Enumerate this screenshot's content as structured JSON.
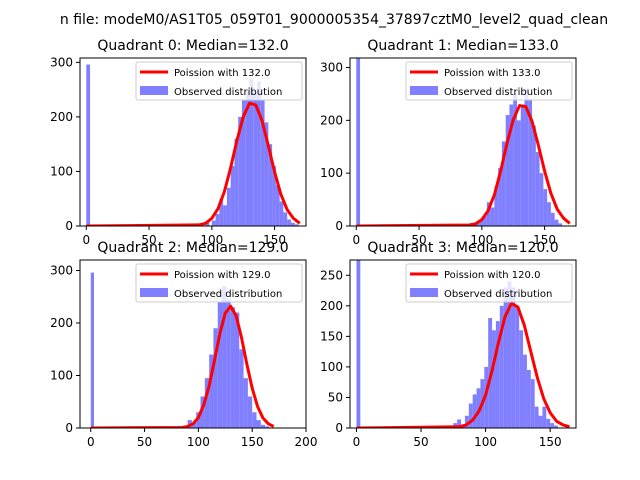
{
  "figure": {
    "suptitle": "n file: modeM0/AS1T05_059T01_9000005354_37897cztM0_level2_quad_clean"
  },
  "colors": {
    "fit_line": "#ff0000",
    "histogram": "#7f7fff",
    "axes": "#000000",
    "legend_border": "#cccccc"
  },
  "chart_data": [
    {
      "type": "bar",
      "title": "Quadrant 0: Median=132.0",
      "xlim": [
        -5,
        175
      ],
      "ylim": [
        0,
        308
      ],
      "xticks": [
        0,
        50,
        100,
        150
      ],
      "yticks": [
        0,
        100,
        200,
        300
      ],
      "legend_position": "top-right",
      "series": [
        {
          "name": "Observed distribution",
          "kind": "histogram",
          "bins": [
            [
              0,
              3,
              296
            ],
            [
              80,
              83,
              3
            ],
            [
              90,
              93,
              5
            ],
            [
              95,
              98,
              8
            ],
            [
              100,
              103,
              10
            ],
            [
              103,
              106,
              22
            ],
            [
              106,
              109,
              50
            ],
            [
              109,
              112,
              38
            ],
            [
              112,
              115,
              70
            ],
            [
              115,
              118,
              110
            ],
            [
              118,
              121,
              160
            ],
            [
              121,
              124,
              200
            ],
            [
              124,
              127,
              230
            ],
            [
              127,
              130,
              245
            ],
            [
              130,
              133,
              270
            ],
            [
              133,
              136,
              245
            ],
            [
              136,
              139,
              265
            ],
            [
              139,
              142,
              230
            ],
            [
              142,
              145,
              190
            ],
            [
              145,
              148,
              150
            ],
            [
              148,
              151,
              110
            ],
            [
              151,
              154,
              75
            ],
            [
              154,
              157,
              45
            ],
            [
              157,
              160,
              25
            ],
            [
              160,
              163,
              12
            ],
            [
              163,
              166,
              6
            ],
            [
              166,
              169,
              3
            ]
          ]
        },
        {
          "name": "Poission with 132.0",
          "kind": "curve",
          "x": [
            0,
            90,
            95,
            100,
            105,
            110,
            115,
            120,
            125,
            130,
            135,
            140,
            145,
            150,
            155,
            160,
            165,
            170
          ],
          "y": [
            0,
            2,
            5,
            14,
            32,
            63,
            107,
            157,
            200,
            225,
            222,
            193,
            147,
            99,
            58,
            30,
            14,
            5
          ]
        }
      ]
    },
    {
      "type": "bar",
      "title": "Quadrant 1: Median=133.0",
      "xlim": [
        -5,
        175
      ],
      "ylim": [
        0,
        318
      ],
      "xticks": [
        0,
        50,
        100,
        150
      ],
      "yticks": [
        0,
        100,
        200,
        300
      ],
      "legend_position": "top-right",
      "series": [
        {
          "name": "Observed distribution",
          "kind": "histogram",
          "bins": [
            [
              0,
              3,
              318
            ],
            [
              85,
              88,
              3
            ],
            [
              90,
              93,
              5
            ],
            [
              95,
              98,
              8
            ],
            [
              98,
              101,
              12
            ],
            [
              101,
              104,
              20
            ],
            [
              104,
              107,
              45
            ],
            [
              107,
              110,
              35
            ],
            [
              110,
              113,
              75
            ],
            [
              113,
              116,
              110
            ],
            [
              116,
              119,
              160
            ],
            [
              119,
              122,
              210
            ],
            [
              122,
              125,
              230
            ],
            [
              125,
              128,
              250
            ],
            [
              128,
              131,
              200
            ],
            [
              131,
              134,
              230
            ],
            [
              134,
              137,
              260
            ],
            [
              137,
              140,
              240
            ],
            [
              140,
              143,
              190
            ],
            [
              143,
              146,
              140
            ],
            [
              146,
              149,
              100
            ],
            [
              149,
              152,
              70
            ],
            [
              152,
              155,
              45
            ],
            [
              155,
              158,
              25
            ],
            [
              158,
              161,
              12
            ],
            [
              161,
              164,
              5
            ]
          ]
        },
        {
          "name": "Poission with 133.0",
          "kind": "curve",
          "x": [
            0,
            90,
            95,
            100,
            105,
            110,
            115,
            120,
            125,
            130,
            135,
            140,
            145,
            150,
            155,
            160,
            165,
            170
          ],
          "y": [
            0,
            2,
            4,
            12,
            29,
            59,
            104,
            156,
            201,
            228,
            226,
            198,
            153,
            104,
            62,
            32,
            15,
            5
          ]
        }
      ]
    },
    {
      "type": "bar",
      "title": "Quadrant 2: Median=129.0",
      "xlim": [
        -10,
        200
      ],
      "ylim": [
        0,
        320
      ],
      "xticks": [
        0,
        50,
        100,
        150,
        200
      ],
      "yticks": [
        0,
        100,
        200,
        300
      ],
      "legend_position": "top-right",
      "series": [
        {
          "name": "Observed distribution",
          "kind": "histogram",
          "bins": [
            [
              0,
              3,
              296
            ],
            [
              85,
              88,
              3
            ],
            [
              90,
              94,
              15
            ],
            [
              94,
              98,
              10
            ],
            [
              98,
              102,
              30
            ],
            [
              102,
              106,
              60
            ],
            [
              106,
              110,
              95
            ],
            [
              110,
              114,
              140
            ],
            [
              114,
              118,
              190
            ],
            [
              118,
              122,
              240
            ],
            [
              122,
              126,
              270
            ],
            [
              126,
              130,
              245
            ],
            [
              130,
              134,
              230
            ],
            [
              134,
              138,
              220
            ],
            [
              138,
              142,
              150
            ],
            [
              142,
              146,
              95
            ],
            [
              146,
              150,
              60
            ],
            [
              150,
              154,
              30
            ],
            [
              154,
              158,
              15
            ],
            [
              158,
              162,
              6
            ],
            [
              162,
              166,
              3
            ]
          ]
        },
        {
          "name": "Poission with 129.0",
          "kind": "curve",
          "x": [
            0,
            85,
            90,
            95,
            100,
            105,
            110,
            115,
            120,
            125,
            130,
            135,
            140,
            145,
            150,
            155,
            160,
            165,
            170
          ],
          "y": [
            0,
            1,
            3,
            8,
            20,
            44,
            80,
            129,
            180,
            219,
            232,
            214,
            173,
            122,
            76,
            41,
            19,
            8,
            3
          ]
        }
      ]
    },
    {
      "type": "bar",
      "title": "Quadrant 3: Median=120.0",
      "xlim": [
        -5,
        170
      ],
      "ylim": [
        0,
        275
      ],
      "xticks": [
        0,
        50,
        100,
        150
      ],
      "yticks": [
        0,
        50,
        100,
        150,
        200,
        250
      ],
      "legend_position": "top-right",
      "series": [
        {
          "name": "Observed distribution",
          "kind": "histogram",
          "bins": [
            [
              0,
              3,
              275
            ],
            [
              70,
              73,
              3
            ],
            [
              75,
              78,
              8
            ],
            [
              78,
              81,
              14
            ],
            [
              81,
              84,
              6
            ],
            [
              84,
              87,
              20
            ],
            [
              87,
              90,
              40
            ],
            [
              90,
              93,
              55
            ],
            [
              93,
              96,
              65
            ],
            [
              96,
              99,
              80
            ],
            [
              99,
              102,
              100
            ],
            [
              102,
              105,
              180
            ],
            [
              105,
              108,
              160
            ],
            [
              108,
              111,
              175
            ],
            [
              111,
              114,
              200
            ],
            [
              114,
              117,
              230
            ],
            [
              117,
              120,
              240
            ],
            [
              120,
              123,
              230
            ],
            [
              123,
              126,
              200
            ],
            [
              126,
              129,
              160
            ],
            [
              129,
              132,
              120
            ],
            [
              132,
              135,
              95
            ],
            [
              135,
              138,
              80
            ],
            [
              138,
              141,
              35
            ],
            [
              141,
              144,
              20
            ],
            [
              144,
              147,
              35
            ],
            [
              147,
              150,
              15
            ],
            [
              150,
              153,
              8
            ],
            [
              153,
              156,
              4
            ]
          ]
        },
        {
          "name": "Poission with 120.0",
          "kind": "curve",
          "x": [
            0,
            80,
            85,
            90,
            95,
            100,
            105,
            110,
            115,
            120,
            125,
            130,
            135,
            140,
            145,
            150,
            155,
            160,
            165
          ],
          "y": [
            0,
            2,
            5,
            13,
            28,
            54,
            94,
            140,
            182,
            204,
            198,
            168,
            125,
            83,
            48,
            25,
            11,
            5,
            2
          ]
        }
      ]
    }
  ]
}
